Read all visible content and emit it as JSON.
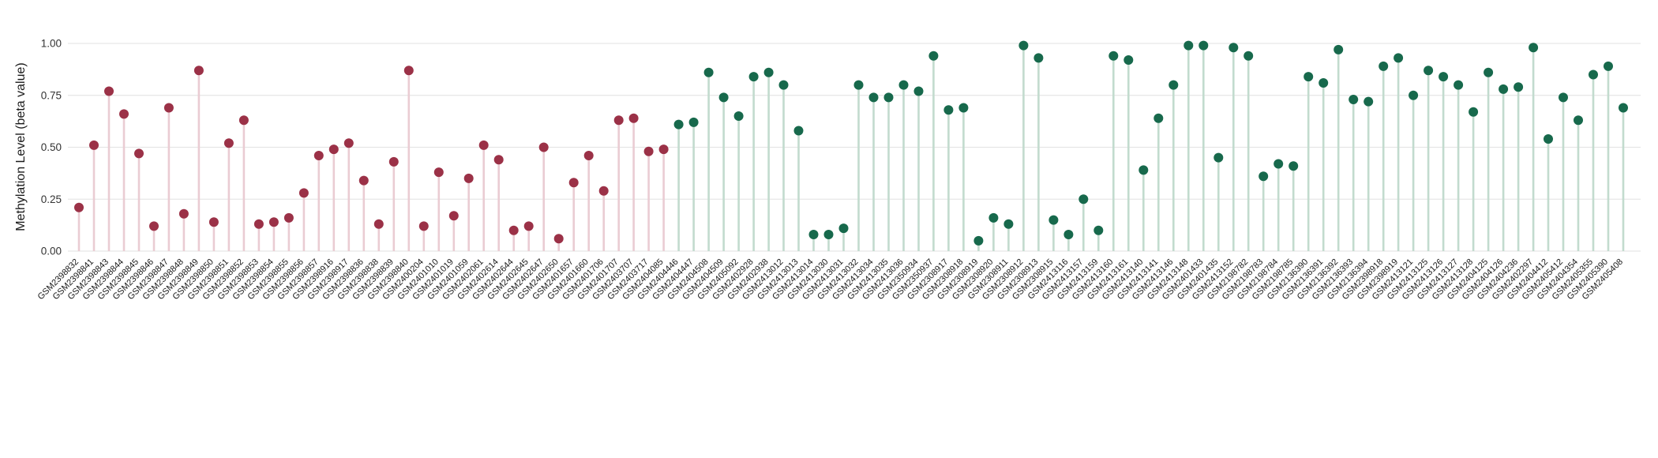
{
  "chart_data": {
    "type": "scatter",
    "variant": "lollipop",
    "title": "",
    "xlabel": "",
    "ylabel": "Methylation Level (beta value)",
    "ylim": [
      0,
      1
    ],
    "yticks": [
      0,
      0.25,
      0.5,
      0.75,
      1.0
    ],
    "ytick_labels": [
      "0.00",
      "0.25",
      "0.50",
      "0.75",
      "1.00"
    ],
    "grid": true,
    "legend_position": "none",
    "grid_color": "#e6e6e6",
    "tick_label_color": "#333333",
    "x_label_color": "#1a1a1a",
    "series": [
      {
        "name": "group-1-maroon",
        "dot_color": "#9b3147",
        "stem_color": "#eaccd3",
        "labels": [
          "GSM2398832",
          "GSM2398841",
          "GSM2398843",
          "GSM2398844",
          "GSM2398845",
          "GSM2398846",
          "GSM2398847",
          "GSM2398848",
          "GSM2398849",
          "GSM2398850",
          "GSM2398851",
          "GSM2398852",
          "GSM2398853",
          "GSM2398854",
          "GSM2398855",
          "GSM2398856",
          "GSM2398857",
          "GSM2398916",
          "GSM2398917",
          "GSM2398836",
          "GSM2398838",
          "GSM2398839",
          "GSM2398840",
          "GSM2400204",
          "GSM2401010",
          "GSM2401019",
          "GSM2401059",
          "GSM2402061",
          "GSM2402614",
          "GSM2402644",
          "GSM2402645",
          "GSM2402647",
          "GSM2402650",
          "GSM2401657",
          "GSM2401660",
          "GSM2401706",
          "GSM2401707",
          "GSM2403707",
          "GSM2403717",
          "GSM2404085"
        ],
        "values": [
          0.21,
          0.51,
          0.77,
          0.66,
          0.47,
          0.12,
          0.69,
          0.18,
          0.87,
          0.14,
          0.52,
          0.63,
          0.13,
          0.14,
          0.16,
          0.28,
          0.46,
          0.49,
          0.52,
          0.34,
          0.13,
          0.43,
          0.87,
          0.12,
          0.38,
          0.17,
          0.35,
          0.51,
          0.44,
          0.1,
          0.12,
          0.5,
          0.06,
          0.33,
          0.46,
          0.29,
          0.63,
          0.64,
          0.48,
          0.49
        ]
      },
      {
        "name": "group-2-green",
        "dot_color": "#17694c",
        "stem_color": "#c2dbce",
        "labels": [
          "GSM2404446",
          "GSM2404447",
          "GSM2404508",
          "GSM2404509",
          "GSM2405092",
          "GSM2402928",
          "GSM2402938",
          "GSM2413012",
          "GSM2413013",
          "GSM2413014",
          "GSM2413030",
          "GSM2413031",
          "GSM2413032",
          "GSM2413034",
          "GSM2413035",
          "GSM2413036",
          "GSM2350934",
          "GSM2350937",
          "GSM2308917",
          "GSM2308918",
          "GSM2308919",
          "GSM2308920",
          "GSM2308911",
          "GSM2308912",
          "GSM2308913",
          "GSM2308915",
          "GSM2413116",
          "GSM2413157",
          "GSM2413159",
          "GSM2413160",
          "GSM2413161",
          "GSM2413140",
          "GSM2413141",
          "GSM2413146",
          "GSM2413148",
          "GSM2401433",
          "GSM2401435",
          "GSM2413152",
          "GSM2198782",
          "GSM2198783",
          "GSM2198784",
          "GSM2198785",
          "GSM2136390",
          "GSM2136391",
          "GSM2136392",
          "GSM2136393",
          "GSM2136394",
          "GSM2398918",
          "GSM2398919",
          "GSM2413121",
          "GSM2413125",
          "GSM2413126",
          "GSM2413127",
          "GSM2413128",
          "GSM2404125",
          "GSM2404126",
          "GSM2404236",
          "GSM2402297",
          "GSM2404412",
          "GSM2405412",
          "GSM2404354",
          "GSM2405355",
          "GSM2405390",
          "GSM2405408"
        ],
        "values": [
          0.61,
          0.62,
          0.86,
          0.74,
          0.65,
          0.84,
          0.86,
          0.8,
          0.58,
          0.08,
          0.08,
          0.11,
          0.8,
          0.74,
          0.74,
          0.8,
          0.77,
          0.94,
          0.68,
          0.69,
          0.05,
          0.16,
          0.13,
          0.99,
          0.93,
          0.15,
          0.08,
          0.25,
          0.1,
          0.94,
          0.92,
          0.39,
          0.64,
          0.8,
          0.99,
          0.99,
          0.45,
          0.98,
          0.94,
          0.36,
          0.42,
          0.41,
          0.84,
          0.81,
          0.97,
          0.73,
          0.72,
          0.89,
          0.93,
          0.75,
          0.87,
          0.84,
          0.8,
          0.67,
          0.86,
          0.78,
          0.79,
          0.98,
          0.54,
          0.74,
          0.63,
          0.85,
          0.89,
          0.69
        ]
      }
    ]
  }
}
